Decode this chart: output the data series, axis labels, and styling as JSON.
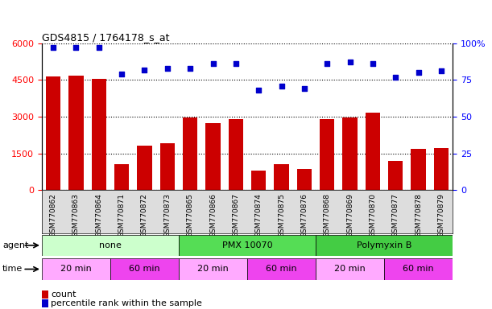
{
  "title": "GDS4815 / 1764178_s_at",
  "samples": [
    "GSM770862",
    "GSM770863",
    "GSM770864",
    "GSM770871",
    "GSM770872",
    "GSM770873",
    "GSM770865",
    "GSM770866",
    "GSM770867",
    "GSM770874",
    "GSM770875",
    "GSM770876",
    "GSM770868",
    "GSM770869",
    "GSM770870",
    "GSM770877",
    "GSM770878",
    "GSM770879"
  ],
  "counts": [
    4650,
    4680,
    4550,
    1050,
    1800,
    1900,
    2950,
    2750,
    2900,
    780,
    1050,
    870,
    2900,
    2980,
    3150,
    1200,
    1680,
    1700
  ],
  "percentiles": [
    97,
    97,
    97,
    79,
    82,
    83,
    83,
    86,
    86,
    68,
    71,
    69,
    86,
    87,
    86,
    77,
    80,
    81
  ],
  "ylim_left": [
    0,
    6000
  ],
  "ylim_right": [
    0,
    100
  ],
  "yticks_left": [
    0,
    1500,
    3000,
    4500,
    6000
  ],
  "yticks_right": [
    0,
    25,
    50,
    75,
    100
  ],
  "bar_color": "#cc0000",
  "dot_color": "#0000cc",
  "agent_groups": [
    {
      "label": "none",
      "start": 0,
      "end": 6,
      "color": "#ccffcc"
    },
    {
      "label": "PMX 10070",
      "start": 6,
      "end": 12,
      "color": "#55dd55"
    },
    {
      "label": "Polymyxin B",
      "start": 12,
      "end": 18,
      "color": "#44cc44"
    }
  ],
  "time_groups": [
    {
      "label": "20 min",
      "start": 0,
      "end": 3,
      "color": "#ffaaff"
    },
    {
      "label": "60 min",
      "start": 3,
      "end": 6,
      "color": "#ee44ee"
    },
    {
      "label": "20 min",
      "start": 6,
      "end": 9,
      "color": "#ffaaff"
    },
    {
      "label": "60 min",
      "start": 9,
      "end": 12,
      "color": "#ee44ee"
    },
    {
      "label": "20 min",
      "start": 12,
      "end": 15,
      "color": "#ffaaff"
    },
    {
      "label": "60 min",
      "start": 15,
      "end": 18,
      "color": "#ee44ee"
    }
  ],
  "xtick_bg": "#dddddd",
  "legend_count_color": "#cc0000",
  "legend_pct_color": "#0000cc",
  "bg_color": "#ffffff"
}
